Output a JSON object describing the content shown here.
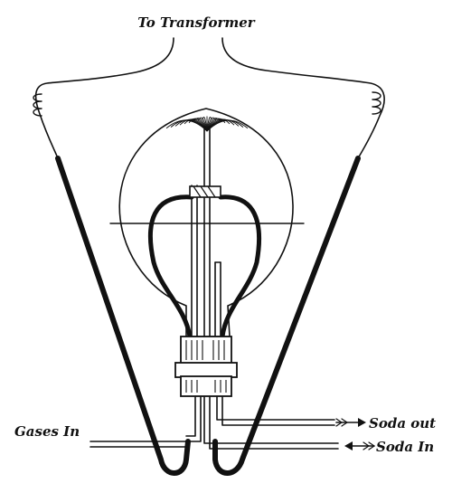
{
  "labels": {
    "transformer": "To Transformer",
    "gases_in": "Gases In",
    "soda_out": "Soda out",
    "soda_in": "Soda In"
  },
  "colors": {
    "ink": "#111111",
    "background": "#ffffff"
  }
}
